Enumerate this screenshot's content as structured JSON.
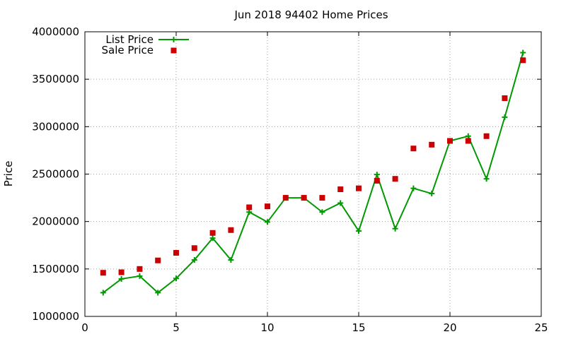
{
  "chart_data": {
    "type": "line",
    "title": "Jun 2018 94402 Home Prices",
    "xlabel": "",
    "ylabel": "Price",
    "xlim": [
      0,
      25
    ],
    "ylim": [
      1000000,
      4000000
    ],
    "x_ticks": [
      "0",
      "5",
      "10",
      "15",
      "20",
      "25"
    ],
    "y_ticks": [
      "1000000",
      "1500000",
      "2000000",
      "2500000",
      "3000000",
      "3500000",
      "4000000"
    ],
    "grid": true,
    "legend_position": "top-left",
    "x": [
      1,
      2,
      3,
      4,
      5,
      6,
      7,
      8,
      9,
      10,
      11,
      12,
      13,
      14,
      15,
      16,
      17,
      18,
      19,
      20,
      21,
      22,
      23,
      24
    ],
    "series": [
      {
        "name": "List Price",
        "style": "line+cross",
        "color": "#009900",
        "values": [
          1250000,
          1395000,
          1425000,
          1250000,
          1400000,
          1595000,
          1825000,
          1595000,
          2100000,
          1995000,
          2250000,
          2250000,
          2100000,
          2195000,
          1900000,
          2495000,
          1925000,
          2350000,
          2295000,
          2850000,
          2900000,
          2450000,
          3100000,
          3780000
        ]
      },
      {
        "name": "Sale Price",
        "style": "square",
        "color": "#cc0000",
        "values": [
          1460000,
          1465000,
          1500000,
          1590000,
          1670000,
          1720000,
          1880000,
          1910000,
          2150000,
          2160000,
          2250000,
          2250000,
          2250000,
          2340000,
          2350000,
          2430000,
          2450000,
          2770000,
          2810000,
          2850000,
          2850000,
          2900000,
          3300000,
          3700000
        ]
      }
    ]
  }
}
